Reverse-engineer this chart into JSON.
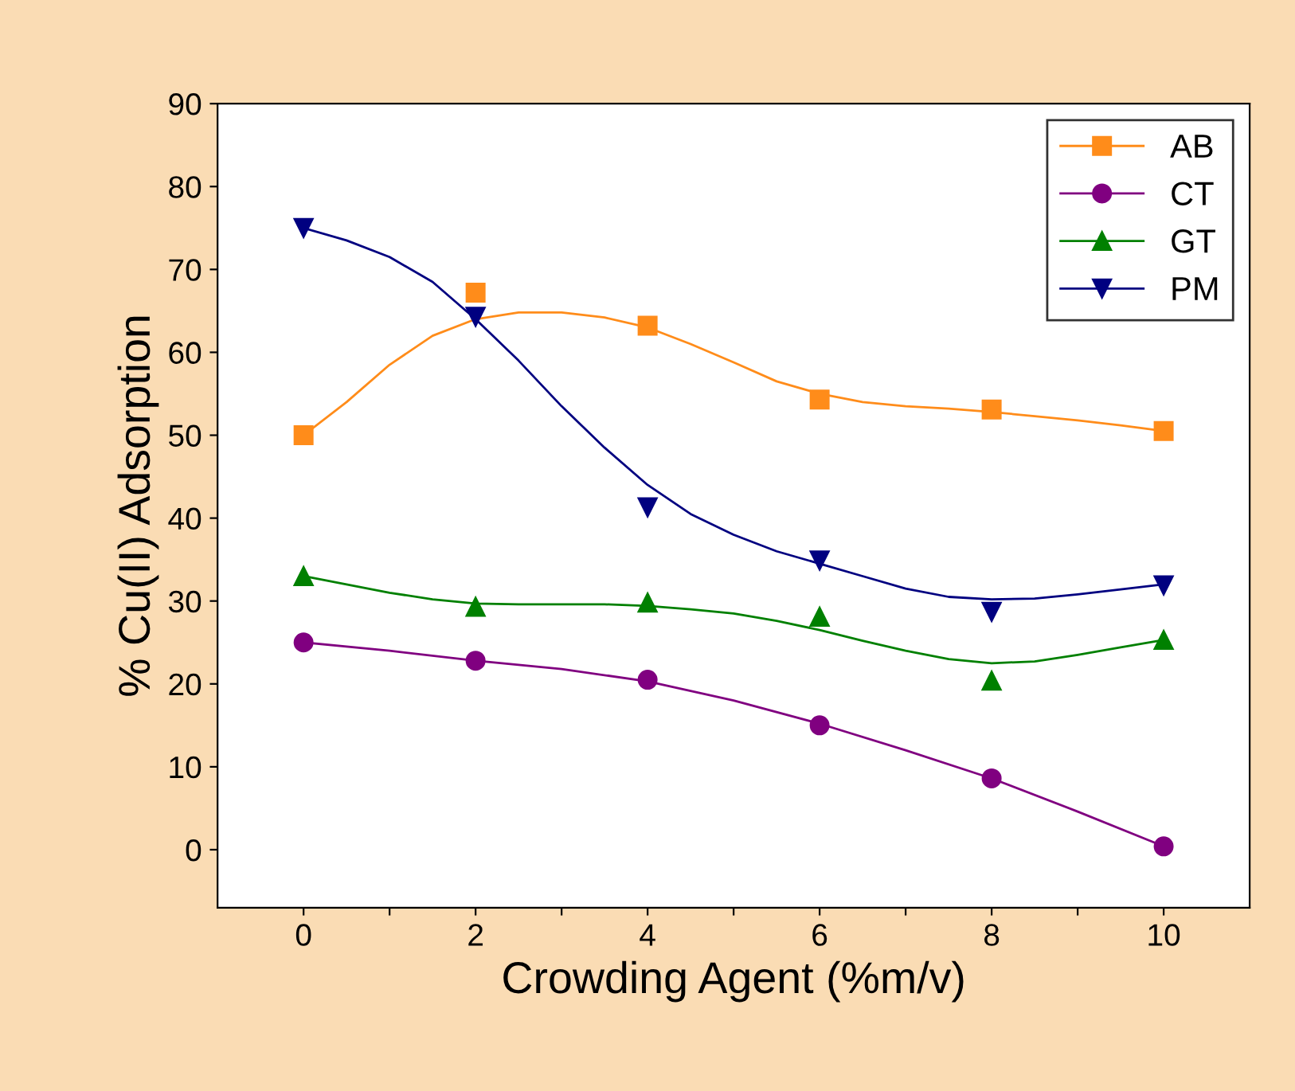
{
  "chart_data": {
    "type": "scatter",
    "xlabel": "Crowding Agent (%m/v)",
    "ylabel": "% Cu(II) Adsorption",
    "x": [
      0,
      2,
      4,
      6,
      8,
      10
    ],
    "series": [
      {
        "name": "AB",
        "color": "#ff8c1a",
        "marker": "square",
        "values": [
          50,
          67.2,
          63.2,
          54.3,
          53.1,
          50.5
        ]
      },
      {
        "name": "CT",
        "color": "#800080",
        "marker": "circle",
        "values": [
          25,
          22.8,
          20.5,
          15,
          8.6,
          0.4
        ]
      },
      {
        "name": "GT",
        "color": "#008000",
        "marker": "triangle",
        "values": [
          33,
          29.3,
          29.8,
          28.1,
          20.4,
          25.3
        ]
      },
      {
        "name": "PM",
        "color": "#000080",
        "marker": "triangle_down",
        "values": [
          75,
          64.3,
          41.3,
          34.9,
          28.7,
          31.9
        ]
      },
      {
        "type": "line",
        "color": "#ff8c1a",
        "x": [
          0,
          0.5,
          1,
          1.5,
          2,
          2.5,
          3,
          3.5,
          4,
          4.5,
          5,
          5.5,
          6,
          6.5,
          7,
          7.5,
          8,
          8.5,
          9,
          9.5,
          10
        ],
        "values": [
          50,
          54,
          58.5,
          62,
          64,
          64.8,
          64.8,
          64.2,
          63,
          61,
          58.8,
          56.5,
          55,
          54,
          53.5,
          53.2,
          52.8,
          52.3,
          51.8,
          51.2,
          50.5
        ]
      },
      {
        "type": "line",
        "color": "#800080",
        "x": [
          0,
          1,
          2,
          3,
          4,
          5,
          6,
          7,
          8,
          9,
          10
        ],
        "values": [
          25,
          24,
          22.8,
          21.8,
          20.3,
          18,
          15.2,
          12,
          8.6,
          4.6,
          0.4
        ]
      },
      {
        "type": "line",
        "color": "#008000",
        "x": [
          0,
          0.5,
          1,
          1.5,
          2,
          2.5,
          3,
          3.5,
          4,
          4.5,
          5,
          5.5,
          6,
          6.5,
          7,
          7.5,
          8,
          8.5,
          9,
          9.5,
          10
        ],
        "values": [
          33,
          32,
          31,
          30.2,
          29.7,
          29.6,
          29.6,
          29.6,
          29.4,
          29,
          28.5,
          27.6,
          26.5,
          25.2,
          24,
          23,
          22.5,
          22.7,
          23.5,
          24.4,
          25.3
        ]
      },
      {
        "type": "line",
        "color": "#000080",
        "x": [
          0,
          0.5,
          1,
          1.5,
          2,
          2.5,
          3,
          3.5,
          4,
          4.5,
          5,
          5.5,
          6,
          6.5,
          7,
          7.5,
          8,
          8.5,
          9,
          9.5,
          10
        ],
        "values": [
          75,
          73.5,
          71.5,
          68.5,
          64,
          59,
          53.5,
          48.5,
          44,
          40.5,
          38,
          36,
          34.5,
          33,
          31.5,
          30.5,
          30.2,
          30.3,
          30.8,
          31.4,
          32
        ]
      }
    ],
    "line_style": "solid",
    "xlim": [
      -1,
      11
    ],
    "xticks": [
      0,
      {
        "value": 1,
        "label": null
      },
      2,
      {
        "value": 3,
        "label": null
      },
      4,
      {
        "value": 5,
        "label": null
      },
      6,
      {
        "value": 7,
        "label": null
      },
      8,
      {
        "value": 9,
        "label": null
      },
      10
    ],
    "ylim": [
      -7,
      90
    ],
    "yticks": [
      0,
      10,
      20,
      30,
      40,
      50,
      60,
      70,
      80,
      90
    ],
    "grid": false,
    "legend": "top right"
  }
}
